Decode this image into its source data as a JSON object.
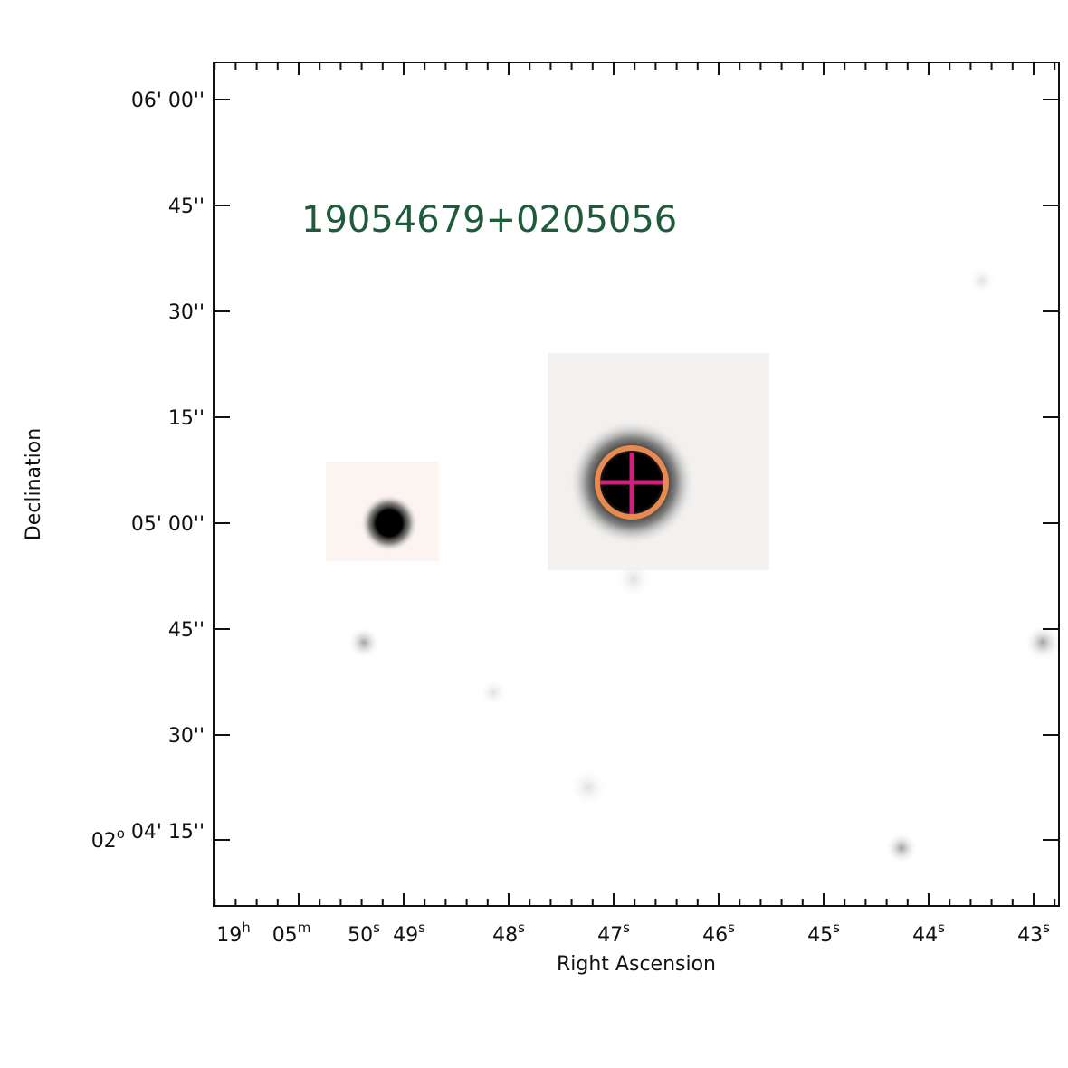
{
  "target_label": "19054679+0205056",
  "x_axis": {
    "title": "Right Ascension",
    "ticks": [
      [
        {
          "text": "19",
          "sup": "h"
        },
        {
          "text": "05",
          "sup": "m"
        },
        {
          "text": "50",
          "sup": "s"
        }
      ],
      [
        {
          "text": "49",
          "sup": "s"
        }
      ],
      [
        {
          "text": "48",
          "sup": "s"
        }
      ],
      [
        {
          "text": "47",
          "sup": "s"
        }
      ],
      [
        {
          "text": "46",
          "sup": "s"
        }
      ],
      [
        {
          "text": "45",
          "sup": "s"
        }
      ],
      [
        {
          "text": "44",
          "sup": "s"
        }
      ],
      [
        {
          "text": "43",
          "sup": "s"
        }
      ]
    ]
  },
  "y_axis": {
    "title": "Declination",
    "ticks": [
      [
        {
          "text": "06' 00''"
        }
      ],
      [
        {
          "text": "45''"
        }
      ],
      [
        {
          "text": "30''"
        }
      ],
      [
        {
          "text": "15''"
        }
      ],
      [
        {
          "text": "05' 00''"
        }
      ],
      [
        {
          "text": "45''"
        }
      ],
      [
        {
          "text": "30''"
        }
      ],
      [
        {
          "text": "02",
          "sup": "o"
        },
        {
          "text": " 04' 15''"
        }
      ]
    ]
  }
}
